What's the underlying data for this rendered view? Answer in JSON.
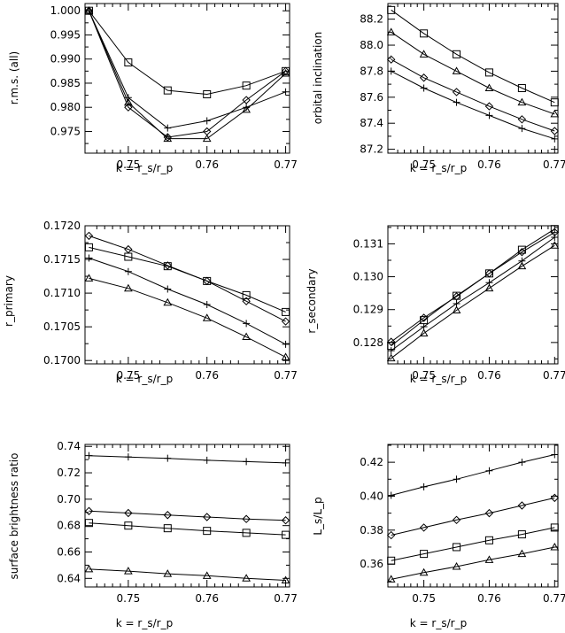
{
  "chart_data": [
    {
      "type": "line",
      "xlabel": "k = r_s/r_p",
      "ylabel": "r.m.s. (all)",
      "xlim": [
        0.7445,
        0.7705
      ],
      "ylim": [
        0.9705,
        1.0015
      ],
      "xticks": [
        "0.75",
        "0.76",
        "0.77"
      ],
      "yticks": [
        "0.975",
        "0.980",
        "0.985",
        "0.990",
        "0.995",
        "1.000"
      ],
      "x": [
        0.745,
        0.75,
        0.755,
        0.76,
        0.765,
        0.77
      ],
      "series": [
        {
          "marker": "square",
          "values": [
            1.0,
            0.9893,
            0.9835,
            0.9827,
            0.9845,
            0.9875
          ]
        },
        {
          "marker": "diamond",
          "values": [
            1.0,
            0.98,
            0.9738,
            0.975,
            0.9815,
            0.9875
          ]
        },
        {
          "marker": "triangle",
          "values": [
            1.0,
            0.981,
            0.9735,
            0.9735,
            0.9795,
            0.987
          ]
        },
        {
          "marker": "plus",
          "values": [
            1.0,
            0.982,
            0.9757,
            0.9772,
            0.98,
            0.9832
          ]
        }
      ]
    },
    {
      "type": "line",
      "xlabel": "k = r_s/r_p",
      "ylabel": "orbital inclination",
      "xlim": [
        0.7445,
        0.7705
      ],
      "ylim": [
        87.17,
        88.32
      ],
      "xticks": [
        "0.75",
        "0.76",
        "0.77"
      ],
      "yticks": [
        "87.2",
        "87.4",
        "87.6",
        "87.8",
        "88.0",
        "88.2"
      ],
      "x": [
        0.745,
        0.75,
        0.755,
        0.76,
        0.765,
        0.77
      ],
      "series": [
        {
          "marker": "square",
          "values": [
            88.27,
            88.09,
            87.93,
            87.79,
            87.67,
            87.56
          ]
        },
        {
          "marker": "triangle",
          "values": [
            88.1,
            87.93,
            87.8,
            87.67,
            87.56,
            87.47
          ]
        },
        {
          "marker": "diamond",
          "values": [
            87.89,
            87.75,
            87.64,
            87.53,
            87.43,
            87.34
          ]
        },
        {
          "marker": "plus",
          "values": [
            87.8,
            87.67,
            87.56,
            87.46,
            87.36,
            87.28
          ]
        }
      ]
    },
    {
      "type": "line",
      "xlabel": "k = r_s/r_p",
      "ylabel": "r_primary",
      "xlim": [
        0.7445,
        0.7705
      ],
      "ylim": [
        0.16995,
        0.172
      ],
      "xticks": [
        "0.75",
        "0.76",
        "0.77"
      ],
      "yticks": [
        "0.1700",
        "0.1705",
        "0.1710",
        "0.1715",
        "0.1720"
      ],
      "x": [
        0.745,
        0.75,
        0.755,
        0.76,
        0.765,
        0.77
      ],
      "series": [
        {
          "marker": "diamond",
          "values": [
            0.17185,
            0.17165,
            0.17141,
            0.17118,
            0.17088,
            0.17058
          ]
        },
        {
          "marker": "square",
          "values": [
            0.17168,
            0.17154,
            0.1714,
            0.17118,
            0.17097,
            0.17072
          ]
        },
        {
          "marker": "plus",
          "values": [
            0.17152,
            0.17132,
            0.17106,
            0.17083,
            0.17055,
            0.17024
          ]
        },
        {
          "marker": "triangle",
          "values": [
            0.17122,
            0.17107,
            0.17086,
            0.17063,
            0.17035,
            0.17005
          ]
        }
      ]
    },
    {
      "type": "line",
      "xlabel": "k = r_s/r_p",
      "ylabel": "r_secondary",
      "xlim": [
        0.7445,
        0.7705
      ],
      "ylim": [
        0.12735,
        0.13155
      ],
      "xticks": [
        "0.75",
        "0.76",
        "0.77"
      ],
      "yticks": [
        "0.128",
        "0.129",
        "0.130",
        "0.131"
      ],
      "x": [
        0.745,
        0.75,
        0.755,
        0.76,
        0.765,
        0.77
      ],
      "series": [
        {
          "marker": "diamond",
          "values": [
            0.12802,
            0.12875,
            0.1294,
            0.1301,
            0.13075,
            0.13135
          ]
        },
        {
          "marker": "square",
          "values": [
            0.1279,
            0.12868,
            0.12942,
            0.1301,
            0.13082,
            0.13145
          ]
        },
        {
          "marker": "plus",
          "values": [
            0.12775,
            0.12848,
            0.12918,
            0.12982,
            0.13048,
            0.1312
          ]
        },
        {
          "marker": "triangle",
          "values": [
            0.12752,
            0.12828,
            0.12898,
            0.12965,
            0.13032,
            0.13095
          ]
        }
      ]
    },
    {
      "type": "line",
      "xlabel": "k = r_s/r_p",
      "ylabel": "surface brightness ratio",
      "xlim": [
        0.7445,
        0.7705
      ],
      "ylim": [
        0.6335,
        0.7415
      ],
      "xticks": [
        "0.75",
        "0.76",
        "0.77"
      ],
      "yticks": [
        "0.64",
        "0.66",
        "0.68",
        "0.70",
        "0.72",
        "0.74"
      ],
      "x": [
        0.745,
        0.75,
        0.755,
        0.76,
        0.765,
        0.77
      ],
      "series": [
        {
          "marker": "plus",
          "values": [
            0.733,
            0.732,
            0.731,
            0.7295,
            0.7285,
            0.7275
          ]
        },
        {
          "marker": "diamond",
          "values": [
            0.691,
            0.6895,
            0.688,
            0.6865,
            0.685,
            0.684
          ]
        },
        {
          "marker": "square",
          "values": [
            0.682,
            0.68,
            0.678,
            0.676,
            0.6745,
            0.673
          ]
        },
        {
          "marker": "triangle",
          "values": [
            0.647,
            0.6455,
            0.6435,
            0.642,
            0.64,
            0.6385
          ]
        }
      ]
    },
    {
      "type": "line",
      "xlabel": "k = r_s/r_p",
      "ylabel": "L_s/L_p",
      "xlim": [
        0.7445,
        0.7705
      ],
      "ylim": [
        0.3465,
        0.4305
      ],
      "xticks": [
        "0.75",
        "0.76",
        "0.77"
      ],
      "yticks": [
        "0.36",
        "0.38",
        "0.40",
        "0.42"
      ],
      "x": [
        0.745,
        0.75,
        0.755,
        0.76,
        0.765,
        0.77
      ],
      "series": [
        {
          "marker": "plus",
          "values": [
            0.4005,
            0.4055,
            0.41,
            0.415,
            0.42,
            0.4245
          ]
        },
        {
          "marker": "diamond",
          "values": [
            0.377,
            0.3815,
            0.386,
            0.39,
            0.3945,
            0.399
          ]
        },
        {
          "marker": "square",
          "values": [
            0.362,
            0.366,
            0.37,
            0.374,
            0.3775,
            0.3815
          ]
        },
        {
          "marker": "triangle",
          "values": [
            0.351,
            0.355,
            0.3585,
            0.3625,
            0.366,
            0.37
          ]
        }
      ]
    }
  ]
}
